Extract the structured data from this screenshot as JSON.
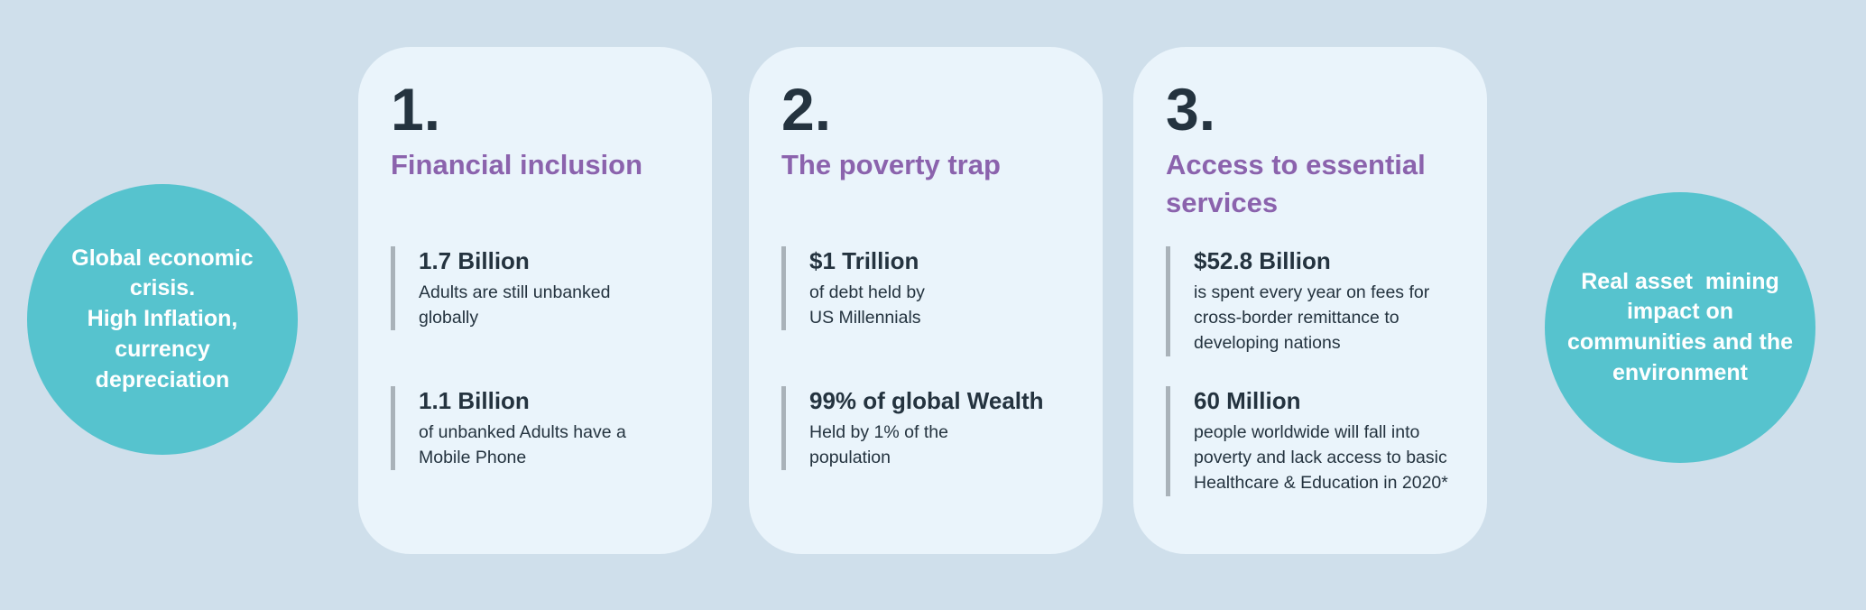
{
  "colors": {
    "page_bg": "#cfdfeb",
    "card_bg": "#eaf4fb",
    "bubble_bg": "#56c3ce",
    "title_purple": "#8b63ad",
    "text_dark": "#24333f",
    "stat_bar": "#a9b2b9",
    "bubble_text": "#ffffff"
  },
  "bubbles": {
    "left": {
      "text": "Global economic\ncrisis.\nHigh Inflation,\ncurrency\ndepreciation"
    },
    "right": {
      "text": "Real asset  mining\nimpact on\ncommunities and the\nenvironment"
    }
  },
  "cards": [
    {
      "number": "1.",
      "title": "Financial inclusion",
      "stats": [
        {
          "value": "1.7 Billion",
          "description": "Adults are still unbanked\nglobally"
        },
        {
          "value": "1.1 Billion",
          "description": "of unbanked Adults have a\nMobile Phone"
        }
      ]
    },
    {
      "number": "2.",
      "title": "The poverty trap",
      "stats": [
        {
          "value": "$1 Trillion",
          "description": "of debt held by\nUS Millennials"
        },
        {
          "value": "99% of global Wealth",
          "description": "Held by 1% of the\npopulation"
        }
      ]
    },
    {
      "number": "3.",
      "title": "Access to essential\nservices",
      "stats": [
        {
          "value": "$52.8 Billion",
          "description": "is spent every year on fees for\ncross-border remittance to\ndeveloping nations"
        },
        {
          "value": "60 Million",
          "description": "people worldwide will fall into\npoverty and lack access to basic\nHealthcare & Education in 2020*"
        }
      ]
    }
  ]
}
